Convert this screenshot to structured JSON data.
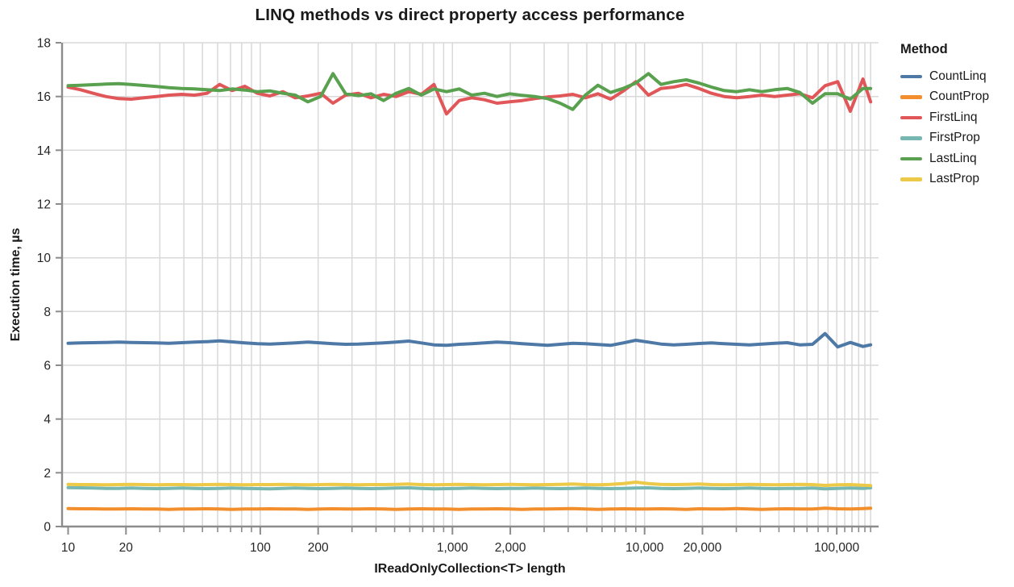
{
  "title": "LINQ methods vs direct property access performance",
  "legend": {
    "title": "Method"
  },
  "axes": {
    "x": {
      "label": "IReadOnlyCollection<T> length",
      "scale": "log",
      "domain": [
        9.3,
        165000
      ],
      "major_ticks": [
        {
          "value": 10,
          "label": "10"
        },
        {
          "value": 20,
          "label": "20"
        },
        {
          "value": 100,
          "label": "100"
        },
        {
          "value": 200,
          "label": "200"
        },
        {
          "value": 1000,
          "label": "1,000"
        },
        {
          "value": 2000,
          "label": "2,000"
        },
        {
          "value": 10000,
          "label": "10,000"
        },
        {
          "value": 20000,
          "label": "20,000"
        },
        {
          "value": 100000,
          "label": "100,000"
        }
      ],
      "minor_ticks": [
        30,
        40,
        50,
        60,
        70,
        80,
        90,
        300,
        400,
        500,
        600,
        700,
        800,
        900,
        3000,
        4000,
        5000,
        6000,
        7000,
        8000,
        9000,
        30000,
        40000,
        50000,
        60000,
        70000,
        80000,
        90000,
        110000,
        120000,
        130000,
        140000,
        150000
      ]
    },
    "y": {
      "label": "Execution time, µs",
      "domain": [
        0,
        18
      ],
      "ticks": [
        0,
        2,
        4,
        6,
        8,
        10,
        12,
        14,
        16,
        18
      ]
    }
  },
  "chart_data": {
    "type": "line",
    "title": "LINQ methods vs direct property access performance",
    "xlabel": "IReadOnlyCollection<T> length",
    "ylabel": "Execution time, µs",
    "xscale": "log",
    "xlim": [
      9.3,
      165000
    ],
    "ylim": [
      0,
      18
    ],
    "grid": true,
    "legend_title": "Method",
    "legend_position": "right",
    "grid_color": "#d9d9d9",
    "axis_color": "#8c8c8c",
    "x": [
      10,
      11.6,
      13.5,
      15.7,
      18.3,
      21.3,
      24.8,
      28.8,
      33.5,
      39,
      45.4,
      52.8,
      61.4,
      71.4,
      83.1,
      96.6,
      112,
      131,
      152,
      177,
      206,
      239,
      278,
      324,
      376,
      438,
      509,
      592,
      689,
      801,
      932,
      1084,
      1261,
      1467,
      1706,
      1984,
      2308,
      2685,
      3123,
      3633,
      4226,
      4915,
      5717,
      6650,
      7735,
      8998,
      10466,
      12175,
      14161,
      16471,
      19160,
      22287,
      25925,
      30156,
      35078,
      40804,
      47464,
      55211,
      64223,
      74706,
      86900,
      101084,
      117583,
      136775,
      150000
    ],
    "series": [
      {
        "name": "CountLinq",
        "color": "#4e79a7",
        "values": [
          6.82,
          6.83,
          6.84,
          6.85,
          6.86,
          6.85,
          6.84,
          6.83,
          6.82,
          6.84,
          6.86,
          6.88,
          6.91,
          6.87,
          6.83,
          6.8,
          6.79,
          6.81,
          6.83,
          6.86,
          6.83,
          6.8,
          6.78,
          6.79,
          6.81,
          6.83,
          6.86,
          6.9,
          6.83,
          6.76,
          6.74,
          6.78,
          6.8,
          6.83,
          6.86,
          6.84,
          6.8,
          6.77,
          6.74,
          6.78,
          6.82,
          6.8,
          6.77,
          6.74,
          6.83,
          6.93,
          6.86,
          6.79,
          6.76,
          6.78,
          6.81,
          6.83,
          6.8,
          6.78,
          6.76,
          6.79,
          6.82,
          6.84,
          6.76,
          6.78,
          7.18,
          6.68,
          6.85,
          6.7,
          6.76
        ]
      },
      {
        "name": "CountProp",
        "color": "#f28e2b",
        "values": [
          0.67,
          0.66,
          0.66,
          0.65,
          0.65,
          0.66,
          0.65,
          0.65,
          0.64,
          0.65,
          0.65,
          0.66,
          0.65,
          0.64,
          0.65,
          0.65,
          0.66,
          0.65,
          0.65,
          0.64,
          0.65,
          0.66,
          0.65,
          0.65,
          0.66,
          0.65,
          0.64,
          0.65,
          0.66,
          0.65,
          0.65,
          0.64,
          0.65,
          0.65,
          0.66,
          0.65,
          0.64,
          0.65,
          0.65,
          0.66,
          0.67,
          0.65,
          0.64,
          0.65,
          0.66,
          0.65,
          0.65,
          0.66,
          0.65,
          0.64,
          0.66,
          0.65,
          0.65,
          0.67,
          0.65,
          0.64,
          0.65,
          0.66,
          0.65,
          0.65,
          0.68,
          0.66,
          0.65,
          0.67,
          0.68
        ]
      },
      {
        "name": "FirstLinq",
        "color": "#e15759",
        "values": [
          16.35,
          16.25,
          16.12,
          16.0,
          15.92,
          15.9,
          15.95,
          16.0,
          16.05,
          16.08,
          16.05,
          16.12,
          16.45,
          16.22,
          16.38,
          16.12,
          16.02,
          16.18,
          15.95,
          16.02,
          16.12,
          15.75,
          16.05,
          16.12,
          15.95,
          16.08,
          16.0,
          16.18,
          16.08,
          16.45,
          15.35,
          15.85,
          15.95,
          15.88,
          15.75,
          15.8,
          15.85,
          15.92,
          15.98,
          16.02,
          16.08,
          15.95,
          16.1,
          15.9,
          16.2,
          16.55,
          16.05,
          16.3,
          16.35,
          16.45,
          16.3,
          16.12,
          16.0,
          15.95,
          16.0,
          16.05,
          16.0,
          16.05,
          16.1,
          15.95,
          16.4,
          16.55,
          15.45,
          16.65,
          15.8
        ]
      },
      {
        "name": "FirstProp",
        "color": "#76b7b2",
        "values": [
          1.45,
          1.44,
          1.43,
          1.42,
          1.42,
          1.43,
          1.42,
          1.41,
          1.42,
          1.43,
          1.42,
          1.41,
          1.42,
          1.43,
          1.42,
          1.41,
          1.4,
          1.42,
          1.43,
          1.42,
          1.41,
          1.42,
          1.43,
          1.42,
          1.41,
          1.42,
          1.43,
          1.44,
          1.42,
          1.4,
          1.41,
          1.42,
          1.43,
          1.42,
          1.41,
          1.42,
          1.42,
          1.43,
          1.42,
          1.41,
          1.42,
          1.43,
          1.42,
          1.41,
          1.42,
          1.43,
          1.44,
          1.42,
          1.41,
          1.42,
          1.43,
          1.42,
          1.41,
          1.42,
          1.43,
          1.42,
          1.41,
          1.42,
          1.42,
          1.43,
          1.4,
          1.42,
          1.43,
          1.42,
          1.44
        ]
      },
      {
        "name": "LastLinq",
        "color": "#59a14f",
        "values": [
          16.4,
          16.42,
          16.44,
          16.46,
          16.48,
          16.45,
          16.41,
          16.37,
          16.33,
          16.3,
          16.28,
          16.25,
          16.22,
          16.28,
          16.24,
          16.18,
          16.21,
          16.12,
          16.05,
          15.8,
          16.0,
          16.85,
          16.1,
          16.03,
          16.1,
          15.85,
          16.12,
          16.3,
          16.05,
          16.28,
          16.18,
          16.28,
          16.05,
          16.12,
          16.0,
          16.1,
          16.04,
          16.0,
          15.92,
          15.75,
          15.52,
          16.05,
          16.42,
          16.15,
          16.3,
          16.5,
          16.85,
          16.45,
          16.55,
          16.62,
          16.5,
          16.35,
          16.22,
          16.18,
          16.25,
          16.18,
          16.25,
          16.3,
          16.15,
          15.75,
          16.1,
          16.1,
          15.9,
          16.3,
          16.3
        ]
      },
      {
        "name": "LastProp",
        "color": "#edc948",
        "values": [
          1.57,
          1.56,
          1.56,
          1.55,
          1.56,
          1.57,
          1.56,
          1.55,
          1.56,
          1.56,
          1.55,
          1.56,
          1.57,
          1.56,
          1.55,
          1.56,
          1.56,
          1.57,
          1.56,
          1.55,
          1.56,
          1.57,
          1.56,
          1.55,
          1.56,
          1.56,
          1.57,
          1.58,
          1.56,
          1.55,
          1.56,
          1.57,
          1.56,
          1.55,
          1.56,
          1.57,
          1.56,
          1.55,
          1.56,
          1.57,
          1.58,
          1.56,
          1.55,
          1.57,
          1.6,
          1.65,
          1.6,
          1.57,
          1.56,
          1.57,
          1.58,
          1.56,
          1.55,
          1.56,
          1.57,
          1.56,
          1.55,
          1.56,
          1.57,
          1.56,
          1.53,
          1.55,
          1.56,
          1.54,
          1.52
        ]
      }
    ]
  }
}
